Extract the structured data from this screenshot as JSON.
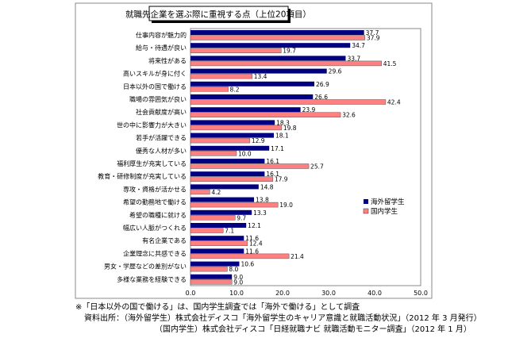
{
  "chart_data": {
    "type": "bar",
    "orientation": "horizontal",
    "title": "就職先企業を選ぶ際に重視する点（上位20項目）",
    "categories": [
      "仕事内容が魅力的",
      "給与・待遇が良い",
      "将来性がある",
      "高いスキルが身に付く",
      "日本以外の国で働ける",
      "職場の雰囲気が良い",
      "社会貢献度が高い",
      "世の中に影響力が大きい",
      "若手が活躍できる",
      "優秀な人材が多い",
      "福利厚生が充実している",
      "教育・研修制度が充実している",
      "専攻・資格が活かせる",
      "希望の勤務地で働ける",
      "希望の職種に就ける",
      "幅広い人脈がつくれる",
      "有名企業である",
      "企業理念に共感できる",
      "男女・学歴などの差別がない",
      "多様な業務を経験できる"
    ],
    "series": [
      {
        "name": "海外留学生",
        "color": "#000080",
        "values": [
          37.7,
          34.7,
          33.7,
          29.6,
          26.9,
          26.6,
          23.9,
          18.3,
          18.1,
          17.1,
          16.1,
          16.1,
          14.8,
          13.8,
          13.3,
          12.1,
          11.6,
          11.6,
          10.6,
          9.0
        ]
      },
      {
        "name": "国内学生",
        "color": "#ff8080",
        "values": [
          37.9,
          19.7,
          41.5,
          13.4,
          8.2,
          42.4,
          32.6,
          19.8,
          12.9,
          10.0,
          25.7,
          17.9,
          4.2,
          19.0,
          9.7,
          7.1,
          12.4,
          21.4,
          8.0,
          9.0
        ]
      }
    ],
    "xlim": [
      0,
      50
    ],
    "xticks": [
      "0.0",
      "10.0",
      "20.0",
      "30.0",
      "40.0",
      "50.0"
    ],
    "grid": false,
    "legend_position": "right"
  },
  "notes": {
    "footnote": "※「日本以外の国で働ける」は、国内学生調査では「海外で働ける」として調査",
    "source1": "資料出所：（海外留学生）株式会社ディスコ「海外留学生のキャリア意識と就職活動状況」（2012 年 3 月発行）",
    "source2": "（国内学生）株式会社ディスコ「日経就職ナビ 就職活動モニター調査」（2012 年 1 月）"
  }
}
